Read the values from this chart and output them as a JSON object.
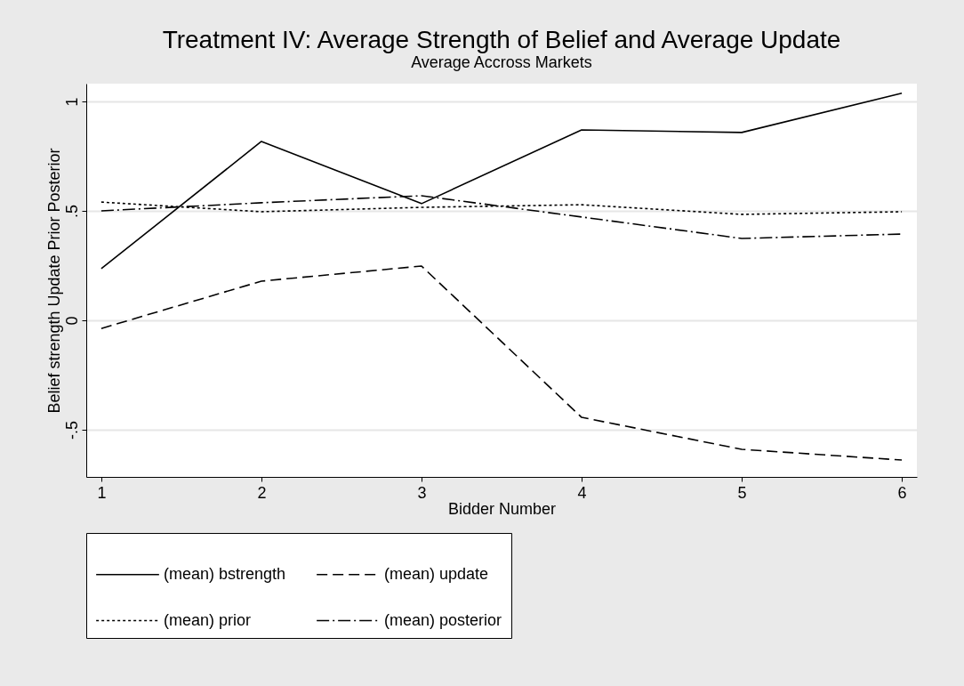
{
  "chart_data": {
    "type": "line",
    "title": "Treatment IV: Average Strength of Belief and Average Update",
    "subtitle": "Average Accross Markets",
    "xlabel": "Bidder Number",
    "ylabel": "Belief strength Update Prior Posterior",
    "x": [
      1,
      2,
      3,
      4,
      5,
      6
    ],
    "xlim": [
      0.906,
      6.094
    ],
    "xticks": [
      1,
      2,
      3,
      4,
      5,
      6
    ],
    "ylim": [
      -0.715,
      1.081
    ],
    "yticks": [
      {
        "value": -0.5,
        "label": "-.5"
      },
      0,
      {
        "value": 0.5,
        "label": ".5"
      },
      1
    ],
    "grid": "y",
    "legend": "bottom",
    "marker": "none",
    "series": [
      {
        "name": "(mean) bstrength",
        "color": "#000000",
        "line_style": "solid",
        "values": [
          0.236,
          0.817,
          0.533,
          0.87,
          0.858,
          1.037
        ]
      },
      {
        "name": "(mean) update",
        "color": "#000000",
        "line_style": "dashed",
        "values": [
          -0.037,
          0.179,
          0.248,
          -0.443,
          -0.589,
          -0.638
        ]
      },
      {
        "name": "(mean) prior",
        "color": "#000000",
        "line_style": "dotted",
        "values": [
          0.54,
          0.496,
          0.516,
          0.528,
          0.484,
          0.496
        ]
      },
      {
        "name": "(mean) posterior",
        "color": "#000000",
        "line_style": "dashdot",
        "values": [
          0.5,
          0.537,
          0.569,
          0.472,
          0.374,
          0.394
        ]
      }
    ]
  }
}
